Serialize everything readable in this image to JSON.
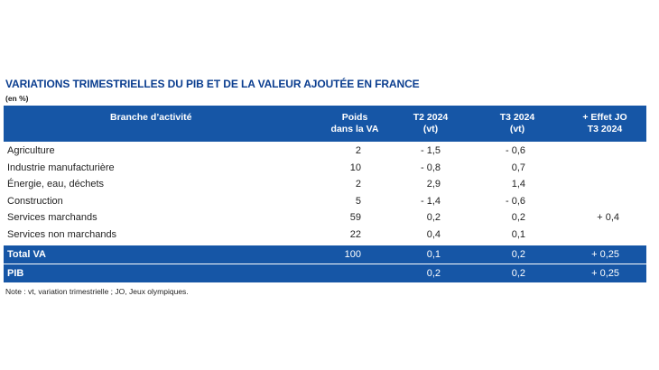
{
  "title": "VARIATIONS TRIMESTRIELLES DU PIB ET DE LA VALEUR AJOUTÉE EN FRANCE",
  "unit": "(en %)",
  "columns": {
    "branch": "Branche d’activité",
    "poids": [
      "Poids",
      "dans la VA"
    ],
    "t2": [
      "T2 2024",
      "(vt)"
    ],
    "t3": [
      "T3 2024",
      "(vt)"
    ],
    "jo": [
      "+ Effet JO",
      "T3 2024"
    ]
  },
  "rows": [
    {
      "branch": "Agriculture",
      "poids": "2",
      "t2": "- 1,5",
      "t3": "- 0,6",
      "jo": ""
    },
    {
      "branch": "Industrie manufacturière",
      "poids": "10",
      "t2": "- 0,8",
      "t3": "0,7",
      "jo": ""
    },
    {
      "branch": "Énergie, eau, déchets",
      "poids": "2",
      "t2": "2,9",
      "t3": "1,4",
      "jo": ""
    },
    {
      "branch": "Construction",
      "poids": "5",
      "t2": "- 1,4",
      "t3": "- 0,6",
      "jo": ""
    },
    {
      "branch": "Services marchands",
      "poids": "59",
      "t2": "0,2",
      "t3": "0,2",
      "jo": "+ 0,4"
    },
    {
      "branch": "Services non marchands",
      "poids": "22",
      "t2": "0,4",
      "t3": "0,1",
      "jo": ""
    }
  ],
  "totals": [
    {
      "branch": "Total VA",
      "poids": "100",
      "t2": "0,1",
      "t3": "0,2",
      "jo": "+ 0,25"
    },
    {
      "branch": "PIB",
      "poids": "",
      "t2": "0,2",
      "t3": "0,2",
      "jo": "+ 0,25"
    }
  ],
  "note": "Note : vt, variation trimestrielle ; JO, Jeux olympiques.",
  "colors": {
    "header_bg": "#1656a6",
    "title": "#0a3d8f"
  }
}
